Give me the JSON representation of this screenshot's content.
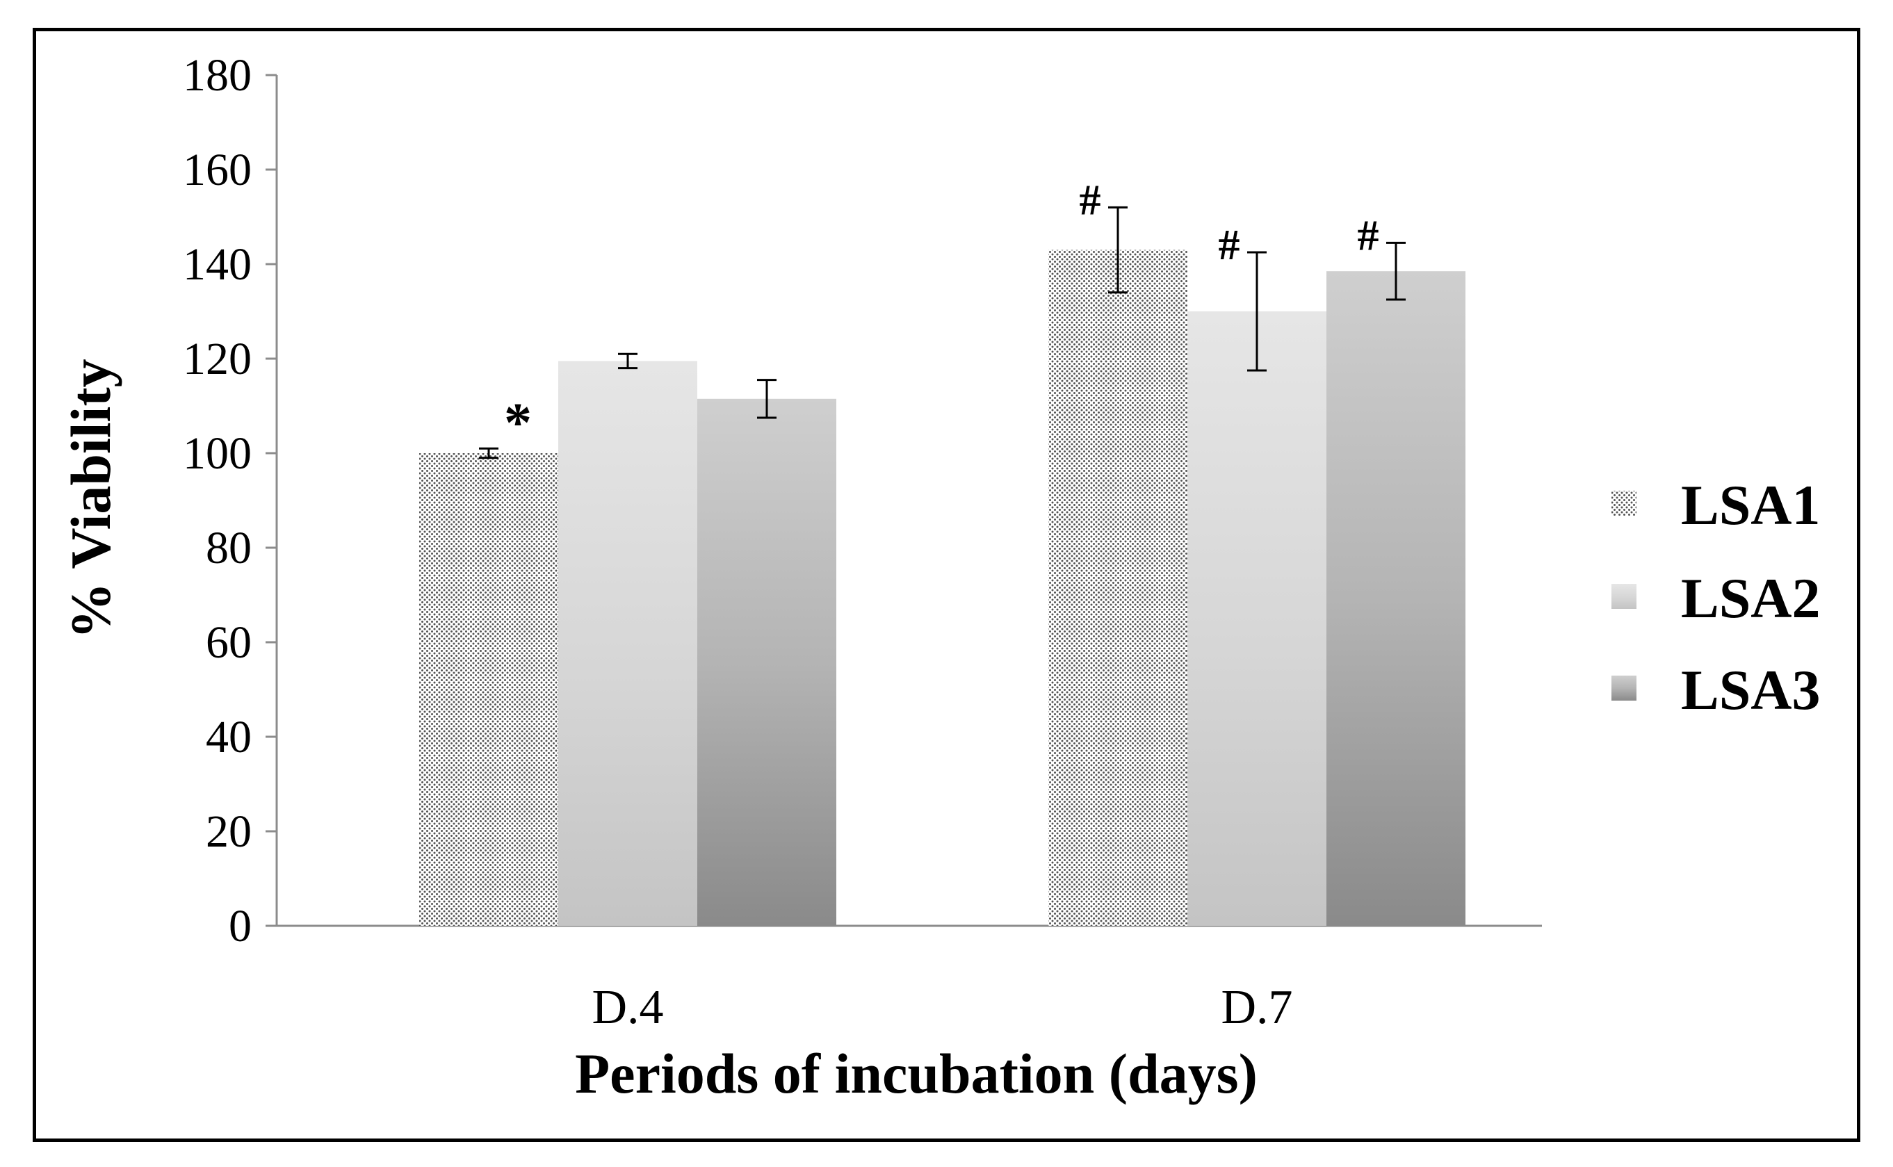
{
  "chart_data": {
    "type": "bar",
    "title": "",
    "xlabel": "Periods of incubation (days)",
    "ylabel": "% Viability",
    "ylim": [
      0,
      180
    ],
    "yticks": [
      0,
      20,
      40,
      60,
      80,
      100,
      120,
      140,
      160,
      180
    ],
    "grid": false,
    "legend_position": "right",
    "categories": [
      "D.4",
      "D.7"
    ],
    "series": [
      {
        "name": "LSA1",
        "values": [
          100,
          143
        ],
        "errors": [
          1,
          9
        ],
        "annotations": [
          "*",
          "#"
        ],
        "style": "dotted"
      },
      {
        "name": "LSA2",
        "values": [
          119.5,
          130
        ],
        "errors": [
          1.5,
          12.5
        ],
        "annotations": [
          "",
          "#"
        ],
        "style": "light-gradient"
      },
      {
        "name": "LSA3",
        "values": [
          111.5,
          138.5
        ],
        "errors": [
          4,
          6
        ],
        "annotations": [
          "",
          "#"
        ],
        "style": "dark-gradient"
      }
    ]
  }
}
